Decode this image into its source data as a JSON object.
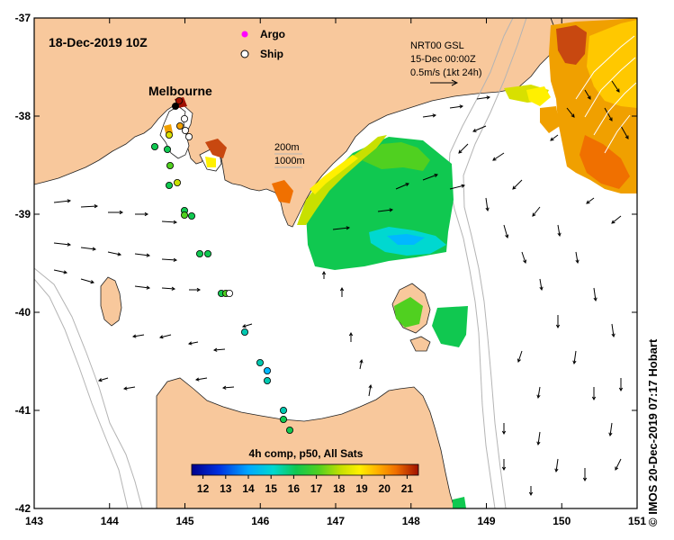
{
  "map": {
    "date_label": "18-Dec-2019 10Z",
    "legend": [
      {
        "label": "Argo",
        "marker_color": "#ff00ff"
      },
      {
        "label": "Ship",
        "marker_color": "#000000"
      }
    ],
    "place_labels": [
      "Melbourne"
    ],
    "depth_labels": [
      "200m",
      "1000m"
    ],
    "current_info": [
      "NRT00 GSL",
      "15-Dec 00:00Z",
      "0.5m/s (1kt 24h)"
    ],
    "colorbar": {
      "title": "4h comp, p50, All Sats",
      "ticks": [
        "12",
        "13",
        "14",
        "15",
        "16",
        "17",
        "18",
        "19",
        "20",
        "21"
      ],
      "range": [
        11.5,
        21.5
      ]
    },
    "x_ticks": [
      "143",
      "144",
      "145",
      "146",
      "147",
      "148",
      "149",
      "150",
      "151"
    ],
    "y_ticks": [
      "-37",
      "-38",
      "-39",
      "-40",
      "-41",
      "-42"
    ],
    "extent": {
      "lon": [
        143,
        151
      ],
      "lat": [
        -42,
        -37
      ]
    },
    "credit": "© IMOS 20-Dec-2019 07:17 Hobart",
    "colors": {
      "land": "#f8c89c",
      "sea": "#ffffff",
      "isobath": "#b4b4b4"
    }
  }
}
